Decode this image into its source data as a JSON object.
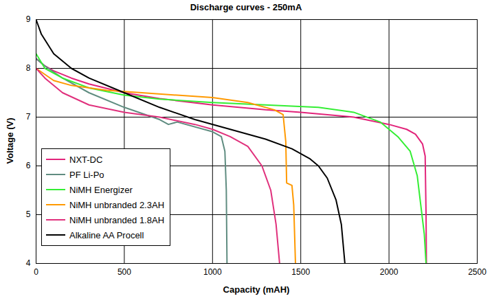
{
  "chart_data": {
    "type": "line",
    "title": "Discharge curves - 250mA",
    "x_label": "Capacity (mAH)",
    "y_label": "Voltage (V)",
    "xlim": [
      0,
      2500
    ],
    "xticks": [
      0,
      500,
      1000,
      1500,
      2000,
      2500
    ],
    "ylim": [
      4,
      9
    ],
    "yticks": [
      4,
      5,
      6,
      7,
      8,
      9
    ],
    "grid": true,
    "legend": "lower left",
    "series": [
      {
        "name": "NXT-DC",
        "color": "#e2237a",
        "x": [
          0,
          50,
          100,
          200,
          300,
          500,
          700,
          1000,
          1300,
          1500,
          1800,
          2000,
          2100,
          2150,
          2190,
          2205,
          2210,
          2212
        ],
        "values": [
          8.2,
          8.05,
          7.95,
          7.8,
          7.68,
          7.5,
          7.38,
          7.25,
          7.15,
          7.1,
          7.0,
          6.85,
          6.75,
          6.65,
          6.45,
          6.2,
          5.0,
          4.0
        ]
      },
      {
        "name": "PF Li-Po",
        "color": "#5f8c80",
        "x": [
          0,
          50,
          150,
          300,
          500,
          700,
          750,
          800,
          1000,
          1050,
          1070,
          1078,
          1082
        ],
        "values": [
          8.2,
          8.05,
          7.8,
          7.5,
          7.2,
          6.95,
          6.85,
          6.9,
          6.7,
          6.6,
          6.3,
          5.5,
          4.0
        ]
      },
      {
        "name": "NiMH Energizer",
        "color": "#33ee33",
        "x": [
          0,
          50,
          150,
          300,
          500,
          700,
          1000,
          1300,
          1600,
          1800,
          1950,
          2050,
          2120,
          2160,
          2180,
          2200,
          2210
        ],
        "values": [
          8.3,
          8.0,
          7.8,
          7.6,
          7.45,
          7.37,
          7.3,
          7.25,
          7.2,
          7.1,
          6.9,
          6.6,
          6.3,
          5.8,
          5.2,
          4.6,
          4.0
        ]
      },
      {
        "name": "NiMH unbranded 2.3AH",
        "color": "#ff9900",
        "x": [
          0,
          100,
          200,
          400,
          600,
          800,
          1000,
          1200,
          1350,
          1400,
          1415,
          1420,
          1450,
          1460,
          1470
        ],
        "values": [
          8.0,
          7.75,
          7.65,
          7.55,
          7.5,
          7.45,
          7.4,
          7.3,
          7.15,
          7.05,
          6.5,
          5.65,
          5.6,
          5.2,
          4.0
        ]
      },
      {
        "name": "NiMH unbranded 1.8AH",
        "color": "#e0307c",
        "x": [
          0,
          50,
          150,
          300,
          500,
          700,
          900,
          1000,
          1100,
          1200,
          1280,
          1330,
          1360,
          1380
        ],
        "values": [
          8.0,
          7.8,
          7.5,
          7.25,
          7.1,
          7.0,
          6.85,
          6.75,
          6.6,
          6.4,
          6.0,
          5.5,
          4.8,
          4.0
        ]
      },
      {
        "name": "Alkaline AA Procell",
        "color": "#000000",
        "x": [
          0,
          30,
          100,
          200,
          300,
          500,
          700,
          900,
          1100,
          1300,
          1450,
          1550,
          1600,
          1650,
          1700,
          1730,
          1750
        ],
        "values": [
          9.0,
          8.7,
          8.3,
          8.0,
          7.8,
          7.5,
          7.2,
          6.95,
          6.75,
          6.55,
          6.35,
          6.15,
          6.0,
          5.75,
          5.3,
          4.8,
          4.0
        ]
      }
    ]
  }
}
